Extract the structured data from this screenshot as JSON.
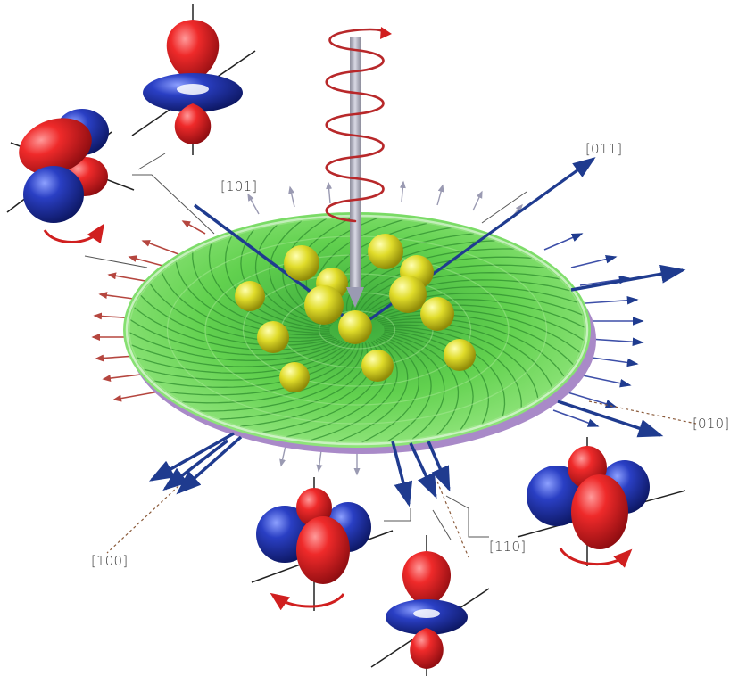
{
  "labels": {
    "dir_101": "[101]",
    "dir_011": "[011]",
    "dir_010": "[010]",
    "dir_100": "[100]",
    "dir_110": "[110]"
  },
  "colors": {
    "disk_green": "#5fd04a",
    "disk_purple": "#9b7fb8",
    "lobe_red": "#e0161e",
    "lobe_blue": "#1c2fa0",
    "atom_yellow": "#d6d41c",
    "helix_red": "#b8282a",
    "axis_gray": "#a8a8b8",
    "arrow_blue": "#1f3b8f",
    "arrow_red": "#b5463f"
  },
  "icons": {
    "orbital": "orbital-icon",
    "rotation": "rotation-arrow-icon",
    "helix": "helix-icon",
    "atom": "atom-sphere-icon"
  }
}
